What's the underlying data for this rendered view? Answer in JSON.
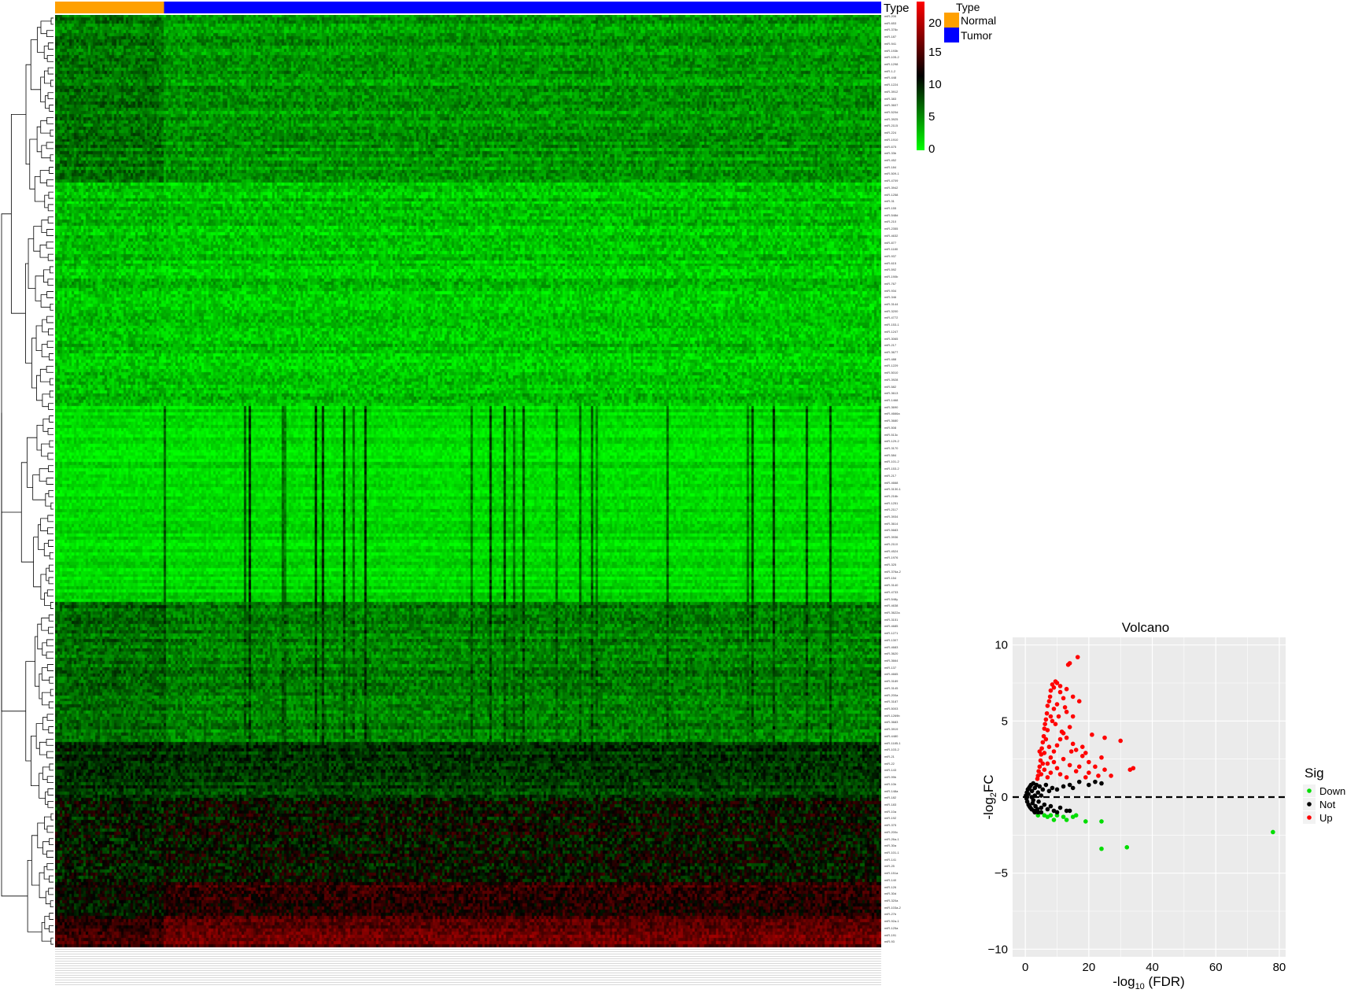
{
  "heatmap": {
    "annotation_title": "Type",
    "annotation_legend_title": "Type",
    "groups": [
      {
        "name": "Normal",
        "color": "#ffa000",
        "fraction": 0.132
      },
      {
        "name": "Tumor",
        "color": "#0000ff",
        "fraction": 0.868
      }
    ],
    "color_scale": {
      "low": "#00ff00",
      "mid": "#000000",
      "high": "#ff0000",
      "ticks": [
        "20",
        "15",
        "10",
        "5",
        "0"
      ]
    },
    "row_labels": [
      "miR-206",
      "miR-653",
      "miR-378c",
      "miR-187",
      "miR-941",
      "miR-193b",
      "miR-105-2",
      "miR-1298",
      "miR-1-2",
      "miR-448",
      "miR-1224",
      "miR-3912",
      "miR-383",
      "miR-3607",
      "miR-520d",
      "miR-3925",
      "miR-2115",
      "miR-224",
      "miR-1910",
      "miR-675",
      "miR-33b",
      "miR-452",
      "miR-184",
      "miR-509-1",
      "miR-4709",
      "miR-3942",
      "miR-1258",
      "miR-31",
      "miR-155",
      "miR-548d",
      "miR-210",
      "miR-2355",
      "miR-4632",
      "miR-877",
      "miR-1180",
      "miR-937",
      "miR-615",
      "miR-592",
      "miR-190b",
      "miR-767",
      "miR-934",
      "miR-346",
      "miR-3144",
      "miR-3200",
      "miR-4772",
      "miR-153-1",
      "miR-1247",
      "miR-3065",
      "miR-217",
      "miR-3677",
      "miR-488",
      "miR-1229",
      "miR-5010",
      "miR-3928",
      "miR-582",
      "miR-3613",
      "miR-1468",
      "miR-3690",
      "miR-4666a",
      "miR-3680",
      "miR-508",
      "miR-513c",
      "miR-129-2",
      "miR-3170",
      "miR-584",
      "miR-101-2",
      "miR-153-2",
      "miR-217",
      "miR-4668",
      "miR-3130-1",
      "miR-216b",
      "miR-1251",
      "miR-2117",
      "miR-3934",
      "miR-3614",
      "miR-5683",
      "miR-3936",
      "miR-2110",
      "miR-4524",
      "miR-1976",
      "miR-325",
      "miR-376a-2",
      "miR-154",
      "miR-3140",
      "miR-4733",
      "miR-548y",
      "miR-4638",
      "miR-3622a",
      "miR-3151",
      "miR-4685",
      "miR-1271",
      "miR-1307",
      "miR-4683",
      "miR-3620",
      "miR-3664",
      "miR-137",
      "miR-4665",
      "miR-3189",
      "miR-3145",
      "miR-200a",
      "miR-3187",
      "miR-5003",
      "miR-1269b",
      "miR-3683",
      "miR-3919",
      "miR-4480",
      "miR-1185-1",
      "miR-103-2",
      "miR-21",
      "miR-22",
      "miR-143",
      "miR-99b",
      "miR-10b",
      "miR-148a",
      "miR-182",
      "miR-183",
      "miR-10a",
      "miR-192",
      "miR-375",
      "miR-200c",
      "miR-26a-1",
      "miR-30a",
      "miR-101-1",
      "miR-141",
      "miR-25",
      "miR-151a",
      "miR-140",
      "miR-126",
      "miR-30d",
      "miR-320a",
      "miR-103a-2",
      "miR-27b",
      "miR-92a-1",
      "miR-125a",
      "miR-191",
      "miR-93"
    ]
  },
  "chart_data": {
    "type": "scatter",
    "title": "Volcano",
    "xlabel": "-log10 (FDR)",
    "ylabel": "-log2FC",
    "xlim": [
      -4,
      82
    ],
    "ylim": [
      -10.5,
      10.5
    ],
    "xticks": [
      "0",
      "20",
      "40",
      "60",
      "80"
    ],
    "yticks": [
      "10",
      "5",
      "0",
      "−5",
      "−10"
    ],
    "reference_line_y": 0,
    "legend_title": "Sig",
    "legend_position": "right",
    "series": [
      {
        "name": "Down",
        "color": "#00dd00",
        "points": [
          [
            4,
            -1.2
          ],
          [
            6,
            -1.2
          ],
          [
            7,
            -1.3
          ],
          [
            8,
            -1.2
          ],
          [
            9,
            -1.5
          ],
          [
            10,
            -1.2
          ],
          [
            12,
            -1.3
          ],
          [
            13,
            -1.5
          ],
          [
            15,
            -1.3
          ],
          [
            16,
            -1.2
          ],
          [
            19,
            -1.6
          ],
          [
            24,
            -1.6
          ],
          [
            24,
            -3.4
          ],
          [
            32,
            -3.3
          ],
          [
            78,
            -2.3
          ]
        ]
      },
      {
        "name": "Not",
        "color": "#000000",
        "points": [
          [
            0.2,
            0.1
          ],
          [
            0.4,
            -0.1
          ],
          [
            0.5,
            0.3
          ],
          [
            0.6,
            -0.3
          ],
          [
            0.8,
            0.5
          ],
          [
            1,
            -0.5
          ],
          [
            1.2,
            0.6
          ],
          [
            1.3,
            -0.6
          ],
          [
            1.5,
            0.7
          ],
          [
            1.6,
            -0.7
          ],
          [
            1.8,
            0.8
          ],
          [
            2,
            -0.8
          ],
          [
            2.1,
            0.4
          ],
          [
            2.3,
            -0.4
          ],
          [
            2.5,
            0.9
          ],
          [
            2.7,
            -0.9
          ],
          [
            3,
            0.6
          ],
          [
            3.2,
            -0.6
          ],
          [
            3.5,
            0.8
          ],
          [
            3.8,
            -0.8
          ],
          [
            4,
            0.3
          ],
          [
            4.2,
            -0.3
          ],
          [
            4.5,
            0.7
          ],
          [
            5,
            -0.7
          ],
          [
            5.5,
            0.5
          ],
          [
            6,
            -0.5
          ],
          [
            6.5,
            0.8
          ],
          [
            7,
            -0.8
          ],
          [
            7.5,
            0.4
          ],
          [
            8,
            -0.6
          ],
          [
            8.5,
            0.6
          ],
          [
            9,
            -0.9
          ],
          [
            10,
            0.5
          ],
          [
            11,
            -0.7
          ],
          [
            12,
            0.7
          ],
          [
            13,
            -0.9
          ],
          [
            14,
            0.8
          ],
          [
            15,
            0.6
          ],
          [
            17,
            1.0
          ],
          [
            20,
            0.8
          ],
          [
            22,
            1.0
          ],
          [
            24,
            0.9
          ],
          [
            2,
            0.0
          ],
          [
            3,
            0.1
          ],
          [
            5,
            0.1
          ],
          [
            1,
            0.2
          ],
          [
            2.5,
            -0.2
          ],
          [
            4,
            -1.0
          ],
          [
            5,
            -1.0
          ],
          [
            3,
            -1.0
          ],
          [
            14,
            -0.9
          ],
          [
            10,
            -1.0
          ]
        ]
      },
      {
        "name": "Up",
        "color": "#ff0000",
        "points": [
          [
            16.5,
            9.2
          ],
          [
            13.5,
            8.7
          ],
          [
            14,
            8.8
          ],
          [
            10,
            7.5
          ],
          [
            9.5,
            7.6
          ],
          [
            9,
            7.2
          ],
          [
            8.5,
            7.4
          ],
          [
            8,
            7.0
          ],
          [
            7.8,
            6.6
          ],
          [
            7.5,
            6.3
          ],
          [
            7,
            6.0
          ],
          [
            6.8,
            5.5
          ],
          [
            6.5,
            5.1
          ],
          [
            6.2,
            4.8
          ],
          [
            6,
            4.5
          ],
          [
            5.8,
            4.0
          ],
          [
            5.5,
            3.6
          ],
          [
            5.2,
            3.2
          ],
          [
            5,
            2.8
          ],
          [
            4.8,
            2.4
          ],
          [
            4.5,
            2.0
          ],
          [
            4.2,
            1.7
          ],
          [
            4,
            1.4
          ],
          [
            3.8,
            1.2
          ],
          [
            11,
            7.3
          ],
          [
            12,
            6.5
          ],
          [
            13,
            5.6
          ],
          [
            15,
            5.3
          ],
          [
            14,
            4.6
          ],
          [
            12,
            4.2
          ],
          [
            11,
            3.8
          ],
          [
            10,
            3.4
          ],
          [
            9,
            3.0
          ],
          [
            8,
            2.6
          ],
          [
            7,
            2.2
          ],
          [
            6,
            1.8
          ],
          [
            5,
            1.5
          ],
          [
            16,
            3.1
          ],
          [
            18,
            2.7
          ],
          [
            20,
            2.3
          ],
          [
            22,
            2.0
          ],
          [
            25,
            1.8
          ],
          [
            27,
            1.4
          ],
          [
            21,
            4.1
          ],
          [
            25,
            3.9
          ],
          [
            30,
            3.7
          ],
          [
            33,
            1.8
          ],
          [
            34,
            1.9
          ],
          [
            17,
            6.3
          ],
          [
            15,
            6.6
          ],
          [
            13,
            7.1
          ],
          [
            11,
            6.9
          ],
          [
            10,
            6.1
          ],
          [
            9,
            5.8
          ],
          [
            8,
            5.3
          ],
          [
            9.5,
            4.8
          ],
          [
            11.5,
            4.3
          ],
          [
            13,
            3.9
          ],
          [
            15,
            3.5
          ],
          [
            18,
            3.3
          ],
          [
            20,
            1.6
          ],
          [
            23,
            1.4
          ],
          [
            19,
            1.3
          ],
          [
            16,
            1.7
          ],
          [
            14,
            2.1
          ],
          [
            12,
            2.5
          ],
          [
            10,
            1.9
          ],
          [
            8,
            1.6
          ],
          [
            7,
            1.3
          ],
          [
            6,
            2.9
          ],
          [
            7.5,
            3.3
          ],
          [
            9,
            2.3
          ],
          [
            11,
            1.5
          ],
          [
            13,
            1.3
          ],
          [
            4.5,
            3.0
          ],
          [
            5.5,
            2.2
          ],
          [
            6.5,
            3.8
          ],
          [
            7,
            4.4
          ],
          [
            8.5,
            5.0
          ],
          [
            10.5,
            5.3
          ],
          [
            12.5,
            5.9
          ],
          [
            14.5,
            3.0
          ],
          [
            17,
            2.0
          ],
          [
            19,
            2.9
          ],
          [
            24,
            2.6
          ]
        ]
      }
    ]
  }
}
